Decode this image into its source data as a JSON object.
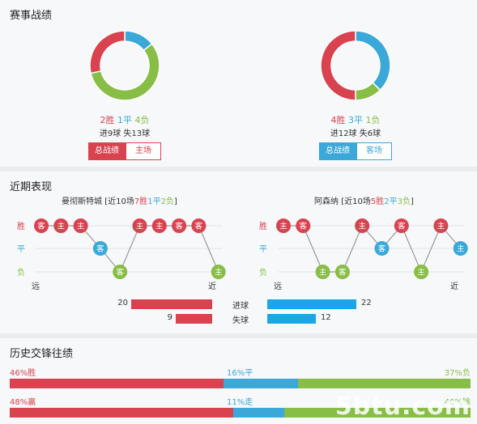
{
  "sections": {
    "record_title": "赛事战绩",
    "recent_title": "近期表现",
    "h2h_title": "历史交锋往绩"
  },
  "colors": {
    "win": "#d9424f",
    "draw": "#3aa8d8",
    "loss": "#88bd46"
  },
  "record": [
    {
      "wins": 2,
      "draws": 1,
      "losses": 4,
      "win_text": "2胜",
      "draw_text": "1平",
      "loss_text": "4负",
      "goals_text": "进9球 失13球",
      "btn_all": "总战绩",
      "btn_venue": "主场",
      "theme": "#d9424f"
    },
    {
      "wins": 4,
      "draws": 3,
      "losses": 1,
      "win_text": "4胜",
      "draw_text": "3平",
      "loss_text": "1负",
      "goals_text": "进12球 失6球",
      "btn_all": "总战绩",
      "btn_venue": "客场",
      "theme": "#3aa8d8"
    }
  ],
  "recent": {
    "row_labels": [
      "胜",
      "平",
      "负"
    ],
    "far_label": "远",
    "near_label": "近",
    "teams": [
      {
        "name": "曼彻斯特城",
        "summary_prefix": "[近10场",
        "wins_text": "7胜",
        "draws_text": "1平",
        "losses_text": "2负",
        "summary_suffix": "]",
        "results": [
          "W",
          "W",
          "W",
          "D",
          "L",
          "W",
          "W",
          "W",
          "W",
          "L"
        ],
        "venues": [
          "客",
          "主",
          "主",
          "客",
          "客",
          "主",
          "主",
          "客",
          "客",
          "主"
        ]
      },
      {
        "name": "阿森纳",
        "summary_prefix": "[近10场",
        "wins_text": "5胜",
        "draws_text": "2平",
        "losses_text": "3负",
        "summary_suffix": "]",
        "results": [
          "W",
          "W",
          "L",
          "L",
          "W",
          "D",
          "W",
          "L",
          "W",
          "D"
        ],
        "venues": [
          "主",
          "客",
          "主",
          "客",
          "主",
          "客",
          "客",
          "主",
          "主",
          "主"
        ]
      }
    ],
    "stats": [
      {
        "label": "进球",
        "left": 20,
        "right": 22
      },
      {
        "label": "失球",
        "left": 9,
        "right": 12
      }
    ]
  },
  "h2h": [
    {
      "left_text": "46%胜",
      "mid_text": "16%平",
      "right_text": "37%负",
      "left": 46,
      "mid": 16,
      "right": 37
    },
    {
      "left_text": "48%赢",
      "mid_text": "11%走",
      "right_text": "40%输",
      "left": 48,
      "mid": 11,
      "right": 40
    }
  ],
  "watermark": "5btu.com"
}
